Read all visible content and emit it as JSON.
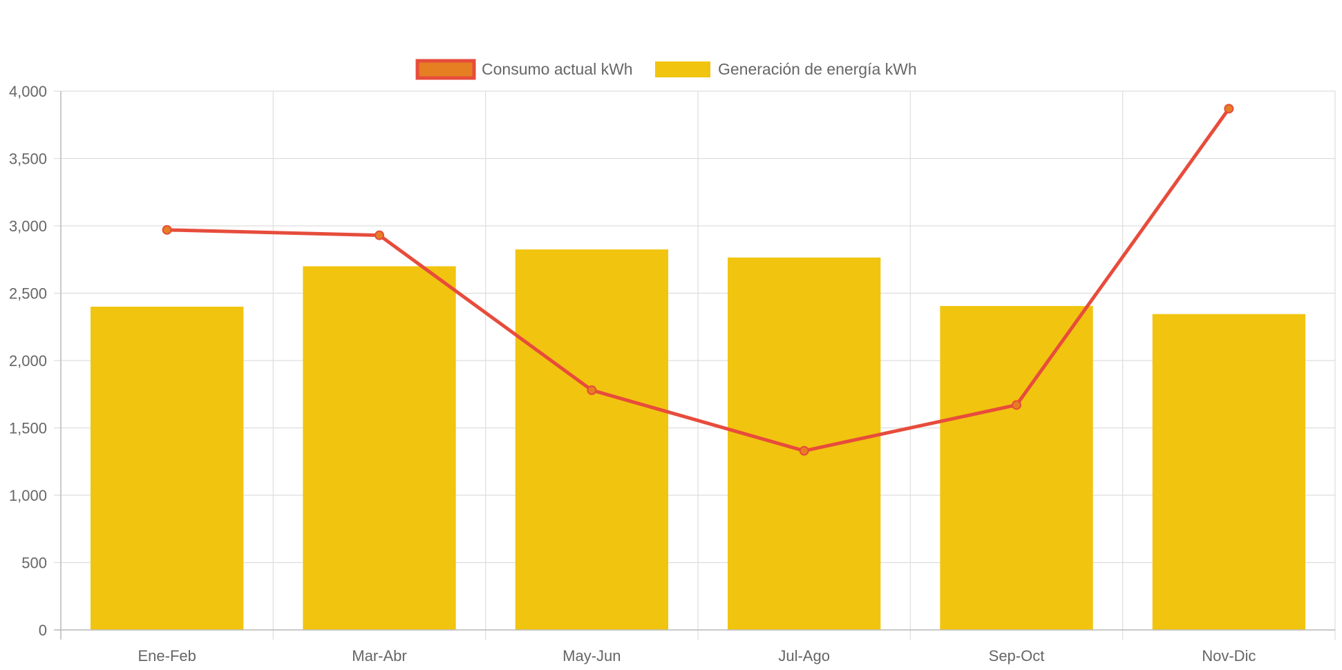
{
  "chart_data": {
    "type": "bar",
    "categories": [
      "Ene-Feb",
      "Mar-Abr",
      "May-Jun",
      "Jul-Ago",
      "Sep-Oct",
      "Nov-Dic"
    ],
    "series": [
      {
        "name": "Consumo actual kWh",
        "type": "line",
        "values": [
          2970,
          2930,
          1780,
          1330,
          1670,
          3870
        ],
        "color": "#e74c3c",
        "point_color": "#e67e22"
      },
      {
        "name": "Generación de energía kWh",
        "type": "bar",
        "values": [
          2400,
          2700,
          2825,
          2765,
          2405,
          2345
        ],
        "color": "#f1c40f"
      }
    ],
    "ylim": [
      0,
      4000
    ],
    "yticks": [
      0,
      500,
      1000,
      1500,
      2000,
      2500,
      3000,
      3500,
      4000
    ],
    "ytick_labels": [
      "0",
      "500",
      "1,000",
      "1,500",
      "2,000",
      "2,500",
      "3,000",
      "3,500",
      "4,000"
    ],
    "grid": true,
    "legend_position": "top-center"
  }
}
